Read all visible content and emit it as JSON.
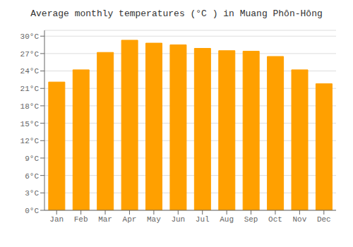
{
  "chart_data": {
    "type": "bar",
    "title": "Average monthly temperatures (°C ) in Muang Phôn-Hông",
    "categories": [
      "Jan",
      "Feb",
      "Mar",
      "Apr",
      "May",
      "Jun",
      "Jul",
      "Aug",
      "Sep",
      "Oct",
      "Nov",
      "Dec"
    ],
    "values": [
      22.1,
      24.2,
      27.2,
      29.3,
      28.8,
      28.5,
      27.9,
      27.5,
      27.4,
      26.5,
      24.2,
      21.8
    ],
    "color": "#FFA000",
    "ylim": [
      0,
      31
    ],
    "yticks": [
      {
        "value": 0,
        "label": "0°C"
      },
      {
        "value": 3,
        "label": "3°C"
      },
      {
        "value": 6,
        "label": "6°C"
      },
      {
        "value": 9,
        "label": "9°C"
      },
      {
        "value": 12,
        "label": "12°C"
      },
      {
        "value": 15,
        "label": "15°C"
      },
      {
        "value": 18,
        "label": "18°C"
      },
      {
        "value": 21,
        "label": "21°C"
      },
      {
        "value": 24,
        "label": "24°C"
      },
      {
        "value": 27,
        "label": "27°C"
      },
      {
        "value": 30,
        "label": "30°C"
      }
    ],
    "grid": true
  }
}
